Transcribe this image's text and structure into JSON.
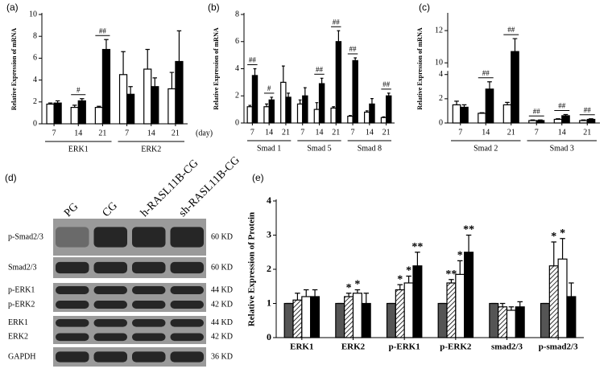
{
  "chart_data": [
    {
      "type": "bar",
      "label": "(a)",
      "ylabel": "Relative Expression of mRNA",
      "xlabel": "(day)",
      "categories": [
        "7",
        "14",
        "21",
        "7",
        "14",
        "21"
      ],
      "groups": [
        "ERK1",
        "ERK2"
      ],
      "ylim": [
        0,
        10
      ],
      "yticks": [
        0,
        2,
        4,
        6,
        8,
        10
      ],
      "series": [
        {
          "color": "#ffffff",
          "values": [
            1.8,
            1.5,
            1.5,
            4.5,
            5.0,
            3.2
          ],
          "errors": [
            0.1,
            0.2,
            0.1,
            2.1,
            1.8,
            1.5
          ]
        },
        {
          "color": "#000000",
          "values": [
            1.9,
            2.1,
            6.8,
            2.7,
            3.4,
            5.7
          ],
          "errors": [
            0.2,
            0.2,
            0.9,
            0.7,
            0.8,
            2.8
          ],
          "significance": [
            null,
            "#",
            "##",
            null,
            null,
            null
          ]
        }
      ]
    },
    {
      "type": "bar",
      "label": "(b)",
      "ylabel": "Relative Expression of mRNA",
      "categories": [
        "7",
        "14",
        "21",
        "7",
        "14",
        "21",
        "7",
        "14",
        "21"
      ],
      "groups": [
        "Smad 1",
        "Smad 5",
        "Smad 8"
      ],
      "ylim": [
        0,
        8
      ],
      "yticks": [
        0,
        2,
        4,
        6,
        8
      ],
      "series": [
        {
          "color": "#ffffff",
          "values": [
            1.2,
            1.2,
            3.0,
            1.4,
            1.0,
            1.1,
            0.5,
            0.8,
            0.4
          ],
          "errors": [
            0.1,
            0.2,
            1.2,
            0.3,
            0.5,
            0.1,
            0.05,
            0.1,
            0.05
          ]
        },
        {
          "color": "#000000",
          "values": [
            3.5,
            1.7,
            1.9,
            2.0,
            2.9,
            6.0,
            4.6,
            1.4,
            2.0
          ],
          "errors": [
            0.5,
            0.2,
            0.3,
            0.6,
            0.4,
            0.8,
            0.2,
            0.4,
            0.2
          ],
          "significance": [
            "##",
            "#",
            null,
            null,
            "##",
            "##",
            "##",
            null,
            "##"
          ]
        }
      ]
    },
    {
      "type": "bar",
      "label": "(c)",
      "ylabel": "Relative Expression of mRNA",
      "categories": [
        "7",
        "14",
        "21",
        "7",
        "14",
        "21"
      ],
      "groups": [
        "Smad 2",
        "Smad 3"
      ],
      "ylim": [
        0,
        13
      ],
      "axis_break": [
        4.3,
        9.5
      ],
      "yticks": [
        0,
        2,
        4,
        10,
        12
      ],
      "series": [
        {
          "color": "#ffffff",
          "values": [
            1.5,
            0.8,
            1.5,
            0.2,
            0.3,
            0.2
          ],
          "errors": [
            0.3,
            0.05,
            0.2,
            0.05,
            0.05,
            0.05
          ]
        },
        {
          "color": "#000000",
          "values": [
            1.3,
            2.8,
            10.7,
            0.2,
            0.6,
            0.3
          ],
          "errors": [
            0.2,
            0.6,
            0.8,
            0.05,
            0.1,
            0.05
          ],
          "significance": [
            null,
            "##",
            "##",
            "##",
            "##",
            "##"
          ]
        }
      ]
    },
    {
      "type": "bar",
      "label": "(e)",
      "ylabel": "Relative Expression of Protein",
      "categories": [
        "ERK1",
        "ERK2",
        "p-ERK1",
        "p-ERK2",
        "smad2/3",
        "p-smad2/3"
      ],
      "ylim": [
        0,
        4
      ],
      "yticks": [
        0,
        1,
        2,
        3,
        4
      ],
      "series": [
        {
          "color": "#555555",
          "values": [
            1.0,
            1.0,
            1.0,
            1.0,
            1.0,
            1.0
          ],
          "errors": [
            0,
            0,
            0,
            0,
            0,
            0
          ]
        },
        {
          "color": "#ffffff",
          "hatch": true,
          "values": [
            1.1,
            1.2,
            1.4,
            1.6,
            0.9,
            2.1
          ],
          "errors": [
            0.2,
            0.1,
            0.15,
            0.1,
            0.1,
            0.7
          ],
          "significance": [
            null,
            "*",
            "*",
            "**",
            null,
            "*"
          ]
        },
        {
          "color": "#ffffff",
          "values": [
            1.2,
            1.3,
            1.6,
            1.85,
            0.8,
            2.3
          ],
          "errors": [
            0.2,
            0.1,
            0.2,
            0.4,
            0.1,
            0.6
          ],
          "significance": [
            null,
            "*",
            "*",
            "*",
            null,
            "*"
          ]
        },
        {
          "color": "#000000",
          "values": [
            1.2,
            1.0,
            2.1,
            2.5,
            0.9,
            1.2
          ],
          "errors": [
            0.2,
            0.3,
            0.4,
            0.5,
            0.15,
            0.4
          ],
          "significance": [
            null,
            null,
            "**",
            "**",
            null,
            null
          ]
        }
      ]
    }
  ],
  "blot": {
    "label": "(d)",
    "lanes": [
      "PG",
      "CG",
      "h-RASL11B-CG",
      "sh-RASL11B-CG"
    ],
    "rows": [
      {
        "names": [
          "p-Smad2/3"
        ],
        "sizes": [
          "60 KD"
        ]
      },
      {
        "names": [
          "Smad2/3"
        ],
        "sizes": [
          "60 KD"
        ]
      },
      {
        "names": [
          "p-ERK1",
          "p-ERK2"
        ],
        "sizes": [
          "44 KD",
          "42 KD"
        ]
      },
      {
        "names": [
          "ERK1",
          "ERK2"
        ],
        "sizes": [
          "44 KD",
          "42 KD"
        ]
      },
      {
        "names": [
          "GAPDH"
        ],
        "sizes": [
          "36 KD"
        ]
      }
    ]
  }
}
